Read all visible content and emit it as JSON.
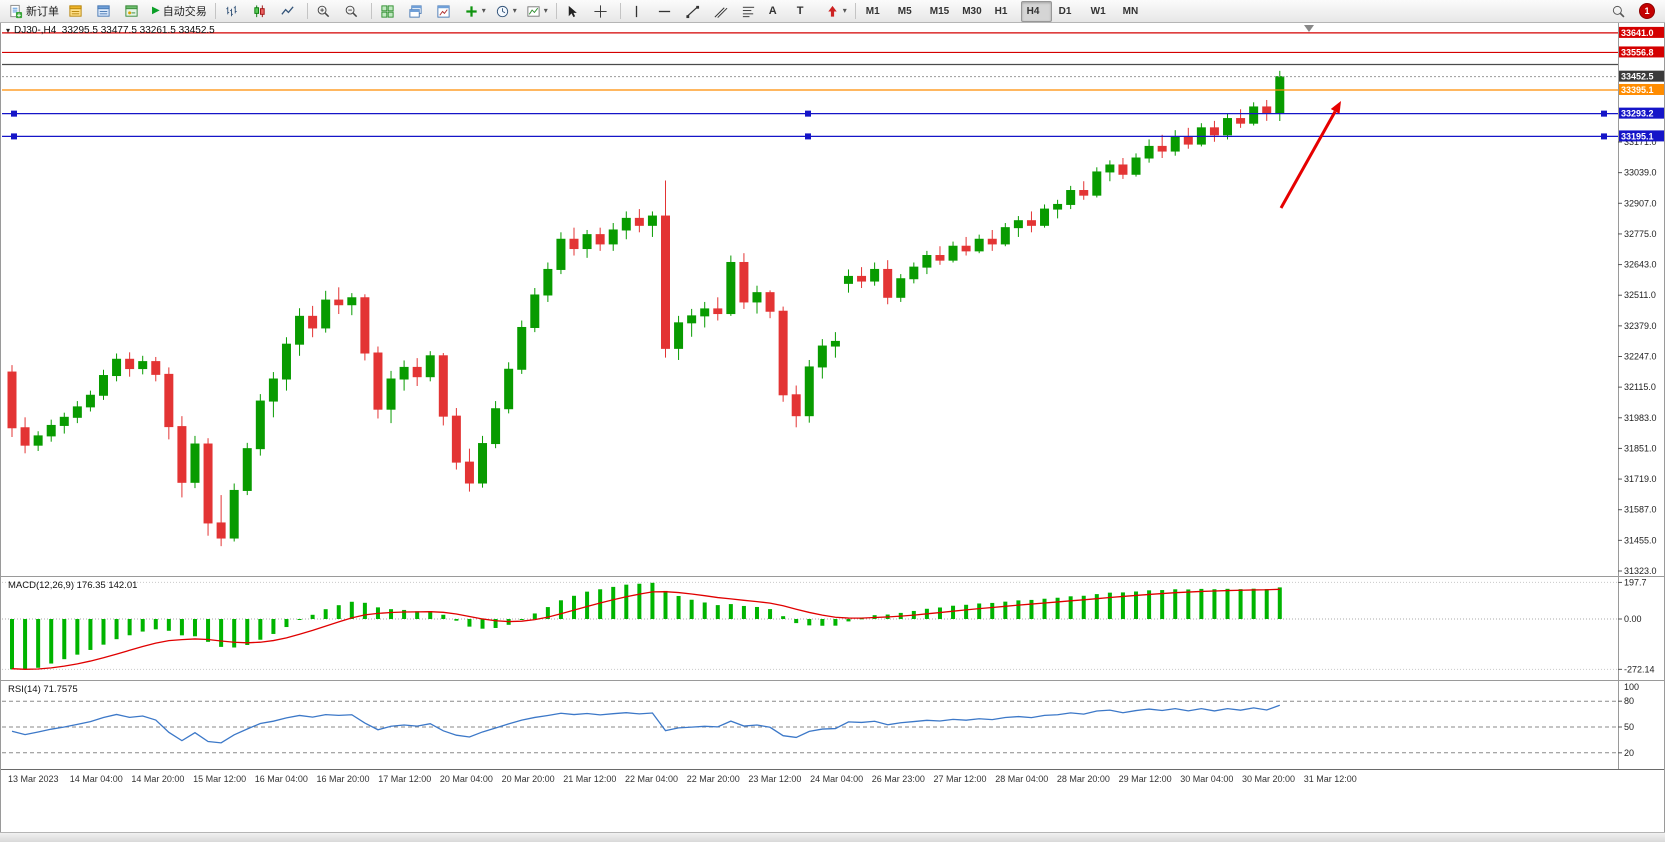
{
  "toolbar": {
    "new_order_label": "新订单",
    "autotrade_label": "自动交易",
    "timeframes": [
      {
        "label": "M1",
        "active": false
      },
      {
        "label": "M5",
        "active": false
      },
      {
        "label": "M15",
        "active": false
      },
      {
        "label": "M30",
        "active": false
      },
      {
        "label": "H1",
        "active": false
      },
      {
        "label": "H4",
        "active": true
      },
      {
        "label": "D1",
        "active": false
      },
      {
        "label": "W1",
        "active": false
      },
      {
        "label": "MN",
        "active": false
      }
    ],
    "notification_count": "1"
  },
  "chart": {
    "title_line": "DJ30-,H4  33295.5 33477.5 33261.5 33452.5",
    "price_ticks": [
      "33171.0",
      "33039.0",
      "32907.0",
      "32775.0",
      "32643.0",
      "32511.0",
      "32379.0",
      "32247.0",
      "32115.0",
      "31983.0",
      "31851.0",
      "31719.0",
      "31587.0",
      "31455.0",
      "31323.0"
    ]
  },
  "macd": {
    "label": "MACD(12,26,9) 176.35 142.01",
    "scale_max": "197.7",
    "scale_zero": "0.00",
    "scale_min": "-272.14"
  },
  "rsi": {
    "label": "RSI(14) 71.7575",
    "scale_top": "100",
    "levels": [
      "80",
      "50",
      "20"
    ]
  },
  "time_axis": [
    "13 Mar 2023",
    "14 Mar 04:00",
    "14 Mar 20:00",
    "15 Mar 12:00",
    "16 Mar 04:00",
    "16 Mar 20:00",
    "17 Mar 12:00",
    "20 Mar 04:00",
    "20 Mar 20:00",
    "21 Mar 12:00",
    "22 Mar 04:00",
    "22 Mar 20:00",
    "23 Mar 12:00",
    "24 Mar 04:00",
    "26 Mar 23:00",
    "27 Mar 12:00",
    "28 Mar 04:00",
    "28 Mar 20:00",
    "29 Mar 12:00",
    "30 Mar 04:00",
    "30 Mar 20:00",
    "31 Mar 12:00"
  ],
  "chart_data": {
    "type": "candlestick",
    "symbol": "DJ30-",
    "timeframe": "H4",
    "current_bar": {
      "open": 33295.5,
      "high": 33477.5,
      "low": 33261.5,
      "close": 33452.5
    },
    "up_color": "#089b00",
    "down_color": "#e33434",
    "candles": [
      [
        32180,
        32210,
        31900,
        31940
      ],
      [
        31940,
        31985,
        31830,
        31865
      ],
      [
        31865,
        31925,
        31840,
        31905
      ],
      [
        31905,
        31975,
        31880,
        31950
      ],
      [
        31950,
        32005,
        31915,
        31985
      ],
      [
        31985,
        32055,
        31960,
        32030
      ],
      [
        32030,
        32100,
        32010,
        32080
      ],
      [
        32080,
        32190,
        32060,
        32165
      ],
      [
        32165,
        32260,
        32140,
        32235
      ],
      [
        32235,
        32265,
        32160,
        32195
      ],
      [
        32195,
        32250,
        32170,
        32225
      ],
      [
        32225,
        32245,
        32140,
        32170
      ],
      [
        32170,
        32200,
        31890,
        31945
      ],
      [
        31945,
        31990,
        31640,
        31705
      ],
      [
        31705,
        31905,
        31680,
        31870
      ],
      [
        31870,
        31895,
        31475,
        31530
      ],
      [
        31530,
        31650,
        31430,
        31465
      ],
      [
        31465,
        31700,
        31450,
        31670
      ],
      [
        31670,
        31875,
        31650,
        31850
      ],
      [
        31850,
        32085,
        31820,
        32055
      ],
      [
        32055,
        32180,
        31985,
        32150
      ],
      [
        32150,
        32330,
        32100,
        32300
      ],
      [
        32300,
        32455,
        32250,
        32420
      ],
      [
        32420,
        32465,
        32330,
        32370
      ],
      [
        32370,
        32530,
        32350,
        32490
      ],
      [
        32490,
        32545,
        32430,
        32470
      ],
      [
        32470,
        32520,
        32425,
        32500
      ],
      [
        32500,
        32515,
        32230,
        32262
      ],
      [
        32262,
        32290,
        31980,
        32020
      ],
      [
        32020,
        32185,
        31960,
        32150
      ],
      [
        32150,
        32230,
        32100,
        32200
      ],
      [
        32200,
        32240,
        32120,
        32160
      ],
      [
        32160,
        32270,
        32140,
        32250
      ],
      [
        32250,
        32262,
        31950,
        31990
      ],
      [
        31990,
        32025,
        31760,
        31792
      ],
      [
        31792,
        31850,
        31665,
        31702
      ],
      [
        31702,
        31905,
        31682,
        31872
      ],
      [
        31872,
        32055,
        31852,
        32022
      ],
      [
        32022,
        32222,
        32002,
        32192
      ],
      [
        32192,
        32402,
        32172,
        32372
      ],
      [
        32372,
        32542,
        32352,
        32512
      ],
      [
        32512,
        32652,
        32482,
        32622
      ],
      [
        32622,
        32782,
        32602,
        32752
      ],
      [
        32752,
        32802,
        32682,
        32712
      ],
      [
        32712,
        32792,
        32672,
        32772
      ],
      [
        32772,
        32802,
        32702,
        32732
      ],
      [
        32732,
        32822,
        32702,
        32792
      ],
      [
        32792,
        32872,
        32752,
        32842
      ],
      [
        32842,
        32882,
        32782,
        32812
      ],
      [
        32812,
        32872,
        32762,
        32852
      ],
      [
        32852,
        33005,
        32242,
        32282
      ],
      [
        32282,
        32422,
        32232,
        32392
      ],
      [
        32392,
        32452,
        32332,
        32422
      ],
      [
        32422,
        32482,
        32372,
        32452
      ],
      [
        32452,
        32502,
        32402,
        32432
      ],
      [
        32432,
        32682,
        32422,
        32652
      ],
      [
        32652,
        32692,
        32452,
        32482
      ],
      [
        32482,
        32552,
        32432,
        32522
      ],
      [
        32522,
        32532,
        32412,
        32442
      ],
      [
        32442,
        32462,
        32052,
        32082
      ],
      [
        32082,
        32122,
        31942,
        31992
      ],
      [
        31992,
        32232,
        31962,
        32202
      ],
      [
        32202,
        32322,
        32152,
        32292
      ],
      [
        32292,
        32352,
        32242,
        32312
      ],
      [
        32562,
        32622,
        32522,
        32592
      ],
      [
        32592,
        32632,
        32542,
        32572
      ],
      [
        32572,
        32652,
        32552,
        32622
      ],
      [
        32622,
        32662,
        32472,
        32502
      ],
      [
        32502,
        32602,
        32482,
        32582
      ],
      [
        32582,
        32652,
        32562,
        32632
      ],
      [
        32632,
        32702,
        32602,
        32682
      ],
      [
        32682,
        32722,
        32642,
        32662
      ],
      [
        32662,
        32742,
        32652,
        32722
      ],
      [
        32722,
        32762,
        32682,
        32702
      ],
      [
        32702,
        32772,
        32692,
        32752
      ],
      [
        32752,
        32792,
        32702,
        32732
      ],
      [
        32732,
        32822,
        32722,
        32802
      ],
      [
        32802,
        32852,
        32762,
        32832
      ],
      [
        32832,
        32872,
        32782,
        32812
      ],
      [
        32812,
        32902,
        32802,
        32882
      ],
      [
        32882,
        32922,
        32842,
        32902
      ],
      [
        32902,
        32982,
        32882,
        32962
      ],
      [
        32962,
        33002,
        32922,
        32942
      ],
      [
        32942,
        33062,
        32932,
        33042
      ],
      [
        33042,
        33092,
        33002,
        33072
      ],
      [
        33072,
        33102,
        33012,
        33032
      ],
      [
        33032,
        33122,
        33022,
        33102
      ],
      [
        33102,
        33182,
        33082,
        33152
      ],
      [
        33152,
        33202,
        33102,
        33132
      ],
      [
        33132,
        33222,
        33112,
        33192
      ],
      [
        33192,
        33232,
        33142,
        33162
      ],
      [
        33162,
        33252,
        33152,
        33232
      ],
      [
        33232,
        33262,
        33172,
        33202
      ],
      [
        33202,
        33292,
        33182,
        33272
      ],
      [
        33272,
        33312,
        33232,
        33252
      ],
      [
        33252,
        33342,
        33242,
        33322
      ],
      [
        33322,
        33352,
        33262,
        33296
      ],
      [
        33295.5,
        33477.5,
        33261.5,
        33452.5
      ]
    ],
    "horizontal_lines": [
      {
        "price": 33641.0,
        "color": "#d40000",
        "label": "33641.0",
        "handles": false
      },
      {
        "price": 33556.8,
        "color": "#d40000",
        "label": "33556.8",
        "handles": false
      },
      {
        "price": 33505.0,
        "color": "#4a4a4a",
        "label": "",
        "handles": false
      },
      {
        "price": 33395.1,
        "color": "#ff8c00",
        "label": "33395.1",
        "handles": false
      },
      {
        "price": 33293.2,
        "color": "#1515c8",
        "label": "33293.2",
        "handles": true
      },
      {
        "price": 33195.1,
        "color": "#1515c8",
        "label": "33195.1",
        "handles": true
      }
    ],
    "bid": {
      "price": 33452.5,
      "label": "33452.5",
      "color": "#3a3a3a"
    },
    "indicators": [
      {
        "name": "MACD",
        "params": "12,26,9",
        "main": 176.35,
        "signal": 142.01,
        "histogram_color": "#00b400",
        "signal_color": "#e00000",
        "scale_max": 197.7,
        "scale_min": -272.14
      },
      {
        "name": "RSI",
        "params": "14",
        "value": 71.7575,
        "line_color": "#3c78c8",
        "levels": [
          80,
          50,
          20
        ]
      }
    ],
    "annotation_arrow": {
      "from": [
        1281,
        208
      ],
      "to": [
        1341,
        101
      ],
      "color": "#e60000"
    }
  }
}
